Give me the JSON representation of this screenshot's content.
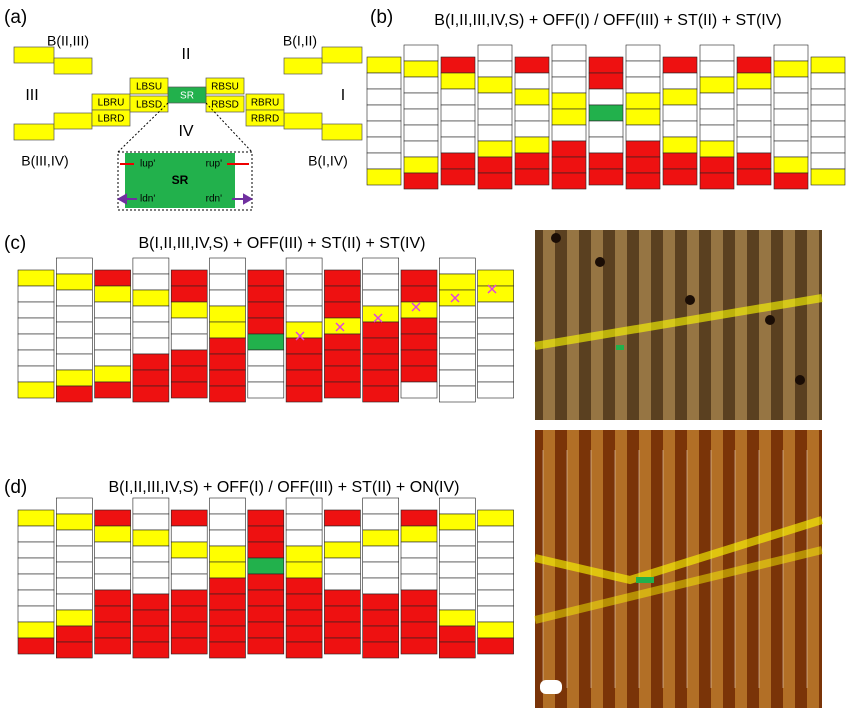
{
  "panel_a": {
    "label": "(a)",
    "boundaries": [
      "B(II,III)",
      "B(I,II)",
      "B(III,IV)",
      "B(I,IV)"
    ],
    "regions": [
      "II",
      "III",
      "I",
      "IV"
    ],
    "blocks": [
      "LBRU",
      "LBSU",
      "LBSD",
      "LBRD",
      "SR",
      "RBSU",
      "RBSD",
      "RBRU",
      "RBRD"
    ],
    "inset": {
      "title": "SR",
      "corners": [
        "lup'",
        "rup'",
        "ldn'",
        "rdn'"
      ]
    }
  },
  "panel_b": {
    "label": "(b)",
    "title": "B(I,II,III,IV,S) + OFF(I) / OFF(III) + ST(II) + ST(IV)"
  },
  "panel_c": {
    "label": "(c)",
    "title": "B(I,II,III,IV,S) + OFF(III) + ST(II) + ST(IV)"
  },
  "panel_d": {
    "label": "(d)",
    "title": "B(I,II,III,IV,S) + OFF(I) / OFF(III) + ST(II) + ON(IV)"
  }
}
